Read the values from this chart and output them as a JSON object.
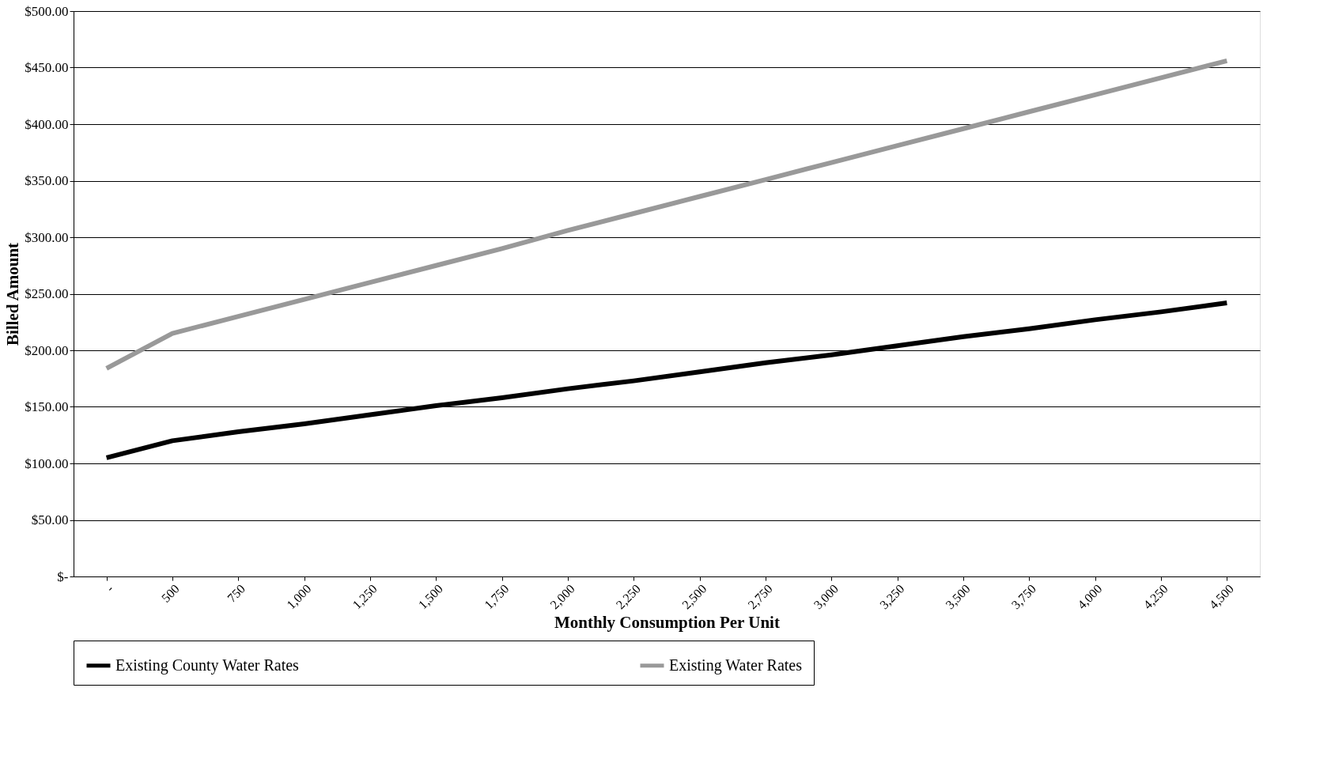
{
  "chart_data": {
    "type": "line",
    "xlabel": "Monthly Consumption Per Unit",
    "ylabel": "Billed Amount",
    "categories": [
      "-",
      "500",
      "750",
      "1,000",
      "1,250",
      "1,500",
      "1,750",
      "2,000",
      "2,250",
      "2,500",
      "2,750",
      "3,000",
      "3,250",
      "3,500",
      "3,750",
      "4,000",
      "4,250",
      "4,500"
    ],
    "series": [
      {
        "name": "Existing County Water Rates",
        "color": "#000000",
        "values": [
          105,
          120,
          128,
          135,
          143,
          151,
          158,
          166,
          173,
          181,
          189,
          196,
          204,
          212,
          219,
          227,
          234,
          242
        ]
      },
      {
        "name": "Existing Water Rates",
        "color": "#999999",
        "values": [
          184,
          215,
          230,
          245,
          260,
          275,
          290,
          306,
          321,
          336,
          351,
          366,
          381,
          396,
          411,
          426,
          441,
          456
        ]
      }
    ],
    "ylim": [
      0,
      500
    ],
    "yticks": [
      {
        "value": 0,
        "label": "$-"
      },
      {
        "value": 50,
        "label": "$50.00"
      },
      {
        "value": 100,
        "label": "$100.00"
      },
      {
        "value": 150,
        "label": "$150.00"
      },
      {
        "value": 200,
        "label": "$200.00"
      },
      {
        "value": 250,
        "label": "$250.00"
      },
      {
        "value": 300,
        "label": "$300.00"
      },
      {
        "value": 350,
        "label": "$350.00"
      },
      {
        "value": 400,
        "label": "$400.00"
      },
      {
        "value": 450,
        "label": "$450.00"
      },
      {
        "value": 500,
        "label": "$500.00"
      }
    ],
    "grid": "y",
    "legend": "bottom",
    "marker": "none",
    "line_style": "solid"
  }
}
